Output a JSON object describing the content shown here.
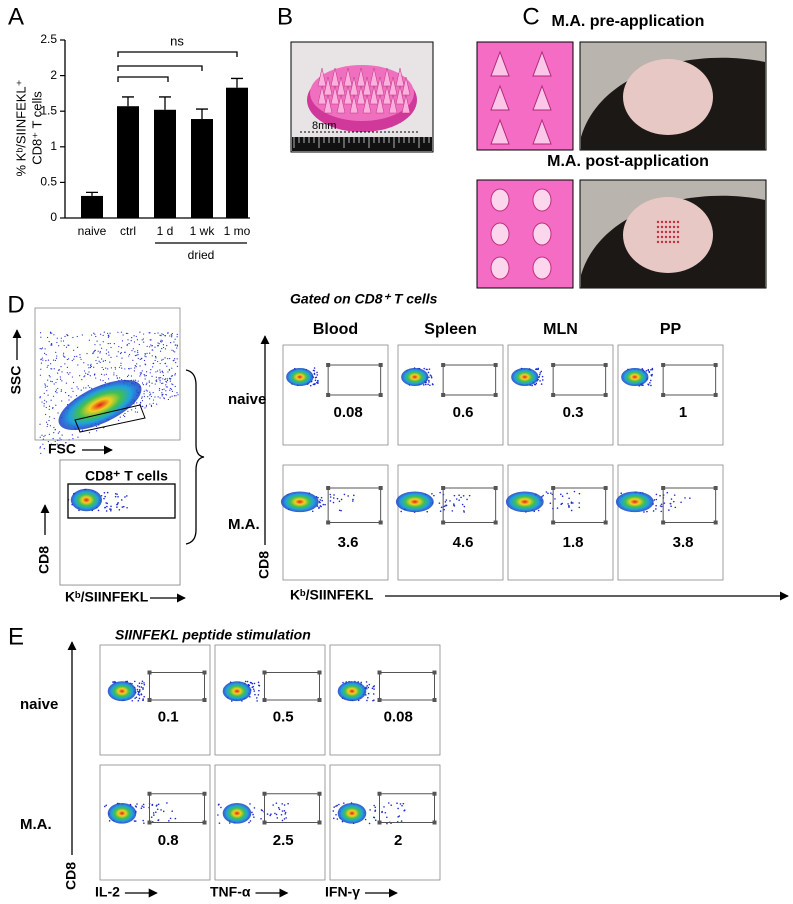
{
  "chart_data": {
    "type": "bar",
    "ylabel": [
      "% Kᵇ/SIINFEKL⁺",
      "CD8⁺ T cells"
    ],
    "categories": [
      "naive",
      "ctrl",
      "1 d",
      "1 wk",
      "1 mo"
    ],
    "values": [
      0.31,
      1.57,
      1.52,
      1.39,
      1.83
    ],
    "errors": [
      0.05,
      0.13,
      0.18,
      0.14,
      0.13
    ],
    "color": "#000000",
    "ylim": [
      0,
      2.5
    ],
    "yticks": [
      0,
      0.5,
      1,
      1.5,
      2,
      2.5
    ],
    "group_label": "dried",
    "annotation": "ns"
  },
  "panel_labels": [
    "A",
    "B",
    "C",
    "D",
    "E"
  ],
  "panel_b": {
    "scale_label": "8mm"
  },
  "panel_c": {
    "pre_title": "M.A. pre-application",
    "post_title": "M.A. post-application"
  },
  "panel_d": {
    "ssc_label": "SSC",
    "fsc_label": "FSC",
    "gate_label": "CD8⁺ T cells",
    "y_axis": "CD8",
    "x_axis": "Kᵇ/SIINFEKL",
    "gated_on": "Gated on CD8⁺ T cells",
    "row_labels": [
      "naive",
      "M.A."
    ],
    "columns": [
      "Blood",
      "Spleen",
      "MLN",
      "PP"
    ],
    "percentages": [
      [
        0.08,
        0.6,
        0.3,
        1
      ],
      [
        3.6,
        4.6,
        1.8,
        3.8
      ]
    ]
  },
  "panel_e": {
    "title": "SIINFEKL peptide stimulation",
    "row_labels": [
      "naive",
      "M.A."
    ],
    "y_axis": "CD8",
    "columns": [
      "IL-2",
      "TNF-α",
      "IFN-γ"
    ],
    "percentages": [
      [
        0.1,
        0.5,
        0.08
      ],
      [
        0.8,
        2.5,
        2
      ]
    ]
  }
}
